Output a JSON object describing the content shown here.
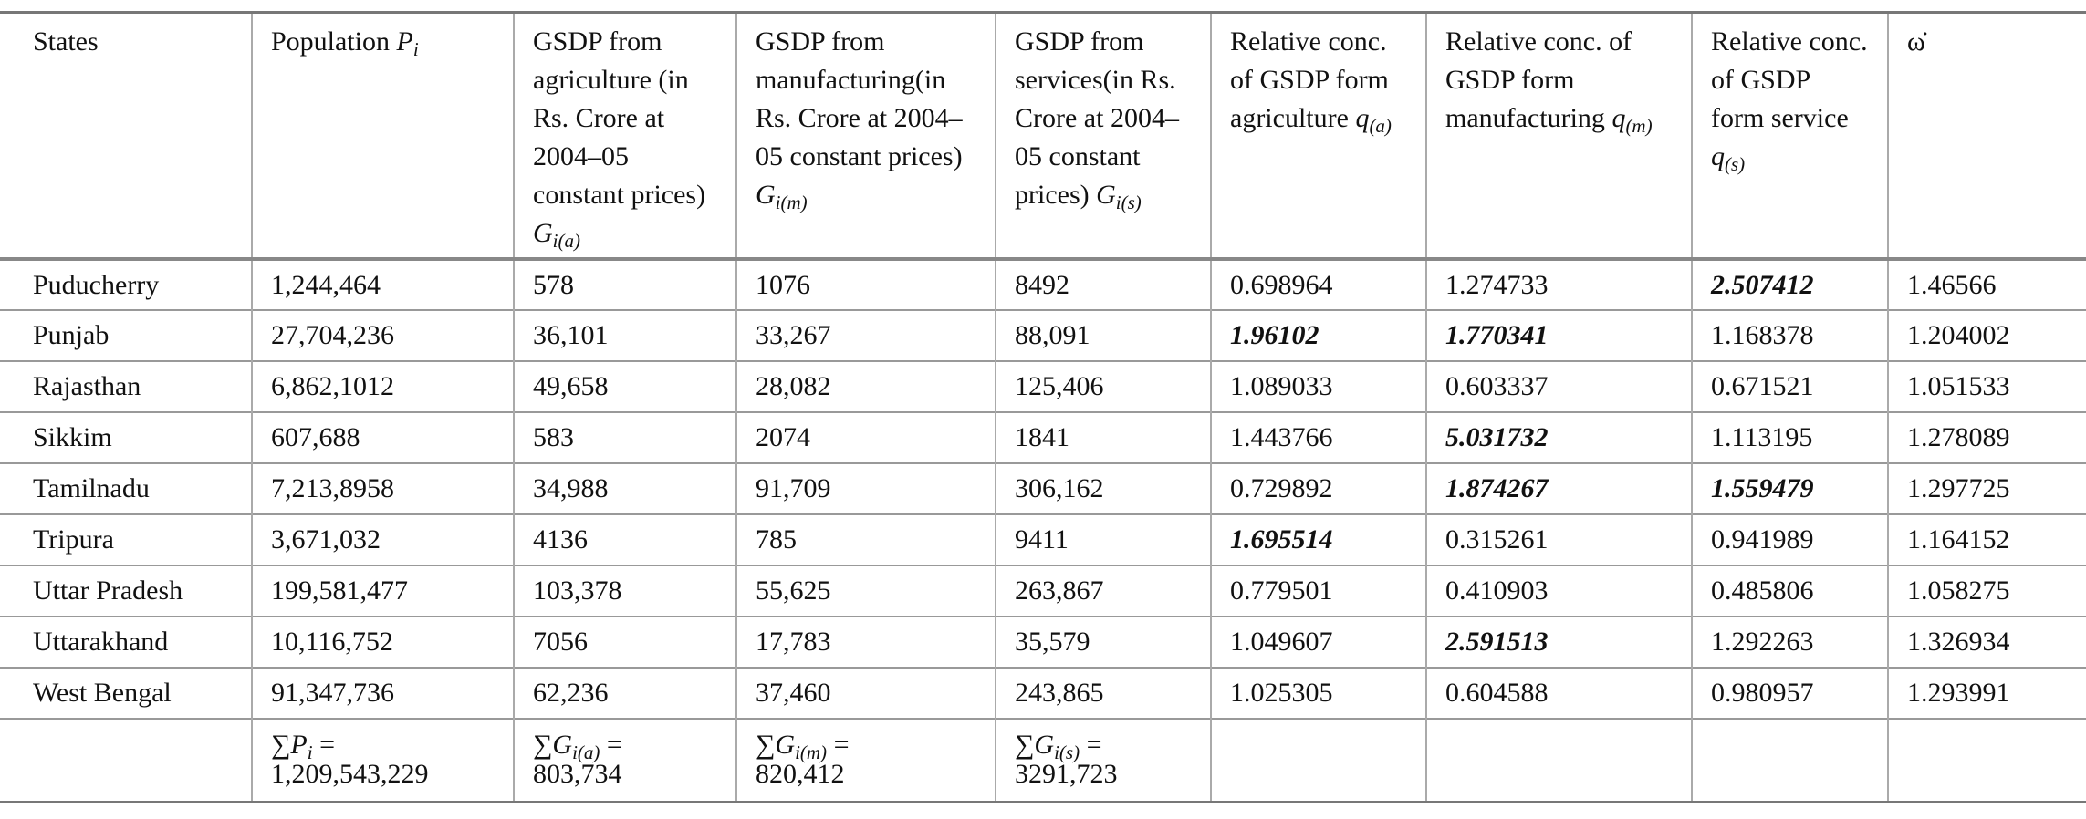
{
  "table": {
    "header": [
      "States",
      {
        "text": "Population",
        "symbol": "P",
        "subscript": "i"
      },
      {
        "text": "GSDP from agriculture (in Rs. Crore at 2004–05 constant prices)",
        "symbol": "G",
        "subscript": "i(a)"
      },
      {
        "text": "GSDP from manufacturing(in Rs. Crore at 2004–05 constant prices)",
        "symbol": "G",
        "subscript": "i(m)"
      },
      {
        "text": "GSDP from services(in Rs. Crore at 2004–05 constant prices)",
        "symbol": "G",
        "subscript": "i(s)"
      },
      {
        "text": "Relative conc. of GSDP form agriculture",
        "symbol": "q",
        "subscript": "(a)"
      },
      {
        "text": "Relative conc. of GSDP form manufacturing",
        "symbol": "q",
        "subscript": "(m)"
      },
      {
        "text": "Relative conc. of GSDP form service",
        "symbol": "q",
        "subscript": "(s)"
      },
      "ω̇"
    ],
    "rows": [
      [
        "Puducherry",
        "1,244,464",
        "578",
        "1076",
        "8492",
        "0.698964",
        "1.274733",
        {
          "text": "2.507412",
          "emphasis": "bold-italic"
        },
        "1.46566"
      ],
      [
        "Punjab",
        "27,704,236",
        "36,101",
        "33,267",
        "88,091",
        {
          "text": "1.96102",
          "emphasis": "bold-italic"
        },
        {
          "text": "1.770341",
          "emphasis": "bold-italic"
        },
        "1.168378",
        "1.204002"
      ],
      [
        "Rajasthan",
        "6,862,1012",
        "49,658",
        "28,082",
        "125,406",
        "1.089033",
        "0.603337",
        "0.671521",
        "1.051533"
      ],
      [
        "Sikkim",
        "607,688",
        "583",
        "2074",
        "1841",
        "1.443766",
        {
          "text": "5.031732",
          "emphasis": "bold-italic"
        },
        "1.113195",
        "1.278089"
      ],
      [
        "Tamilnadu",
        "7,213,8958",
        "34,988",
        "91,709",
        "306,162",
        "0.729892",
        {
          "text": "1.874267",
          "emphasis": "bold-italic"
        },
        {
          "text": "1.559479",
          "emphasis": "bold-italic"
        },
        "1.297725"
      ],
      [
        "Tripura",
        "3,671,032",
        "4136",
        "785",
        "9411",
        {
          "text": "1.695514",
          "emphasis": "bold-italic"
        },
        "0.315261",
        "0.941989",
        "1.164152"
      ],
      [
        "Uttar Pradesh",
        "199,581,477",
        "103,378",
        "55,625",
        "263,867",
        "0.779501",
        "0.410903",
        "0.485806",
        "1.058275"
      ],
      [
        "Uttarakhand",
        "10,116,752",
        "7056",
        "17,783",
        "35,579",
        "1.049607",
        {
          "text": "2.591513",
          "emphasis": "bold-italic"
        },
        "1.292263",
        "1.326934"
      ],
      [
        "West Bengal",
        "91,347,736",
        "62,236",
        "37,460",
        "243,865",
        "1.025305",
        "0.604588",
        "0.980957",
        "1.293991"
      ]
    ],
    "footer": [
      null,
      {
        "prefix": "∑",
        "symbol": "P",
        "subscript": "i",
        "relation": "=",
        "value": "1,209,543,229"
      },
      {
        "prefix": "∑",
        "symbol": "G",
        "subscript": "i(a)",
        "relation": "=",
        "value": "803,734"
      },
      {
        "prefix": "∑",
        "symbol": "G",
        "subscript": "i(m)",
        "relation": "=",
        "value": "820,412"
      },
      {
        "prefix": "∑",
        "symbol": "G",
        "subscript": "i(s)",
        "relation": "=",
        "value": "3291,723"
      },
      null,
      null,
      null,
      null
    ]
  }
}
